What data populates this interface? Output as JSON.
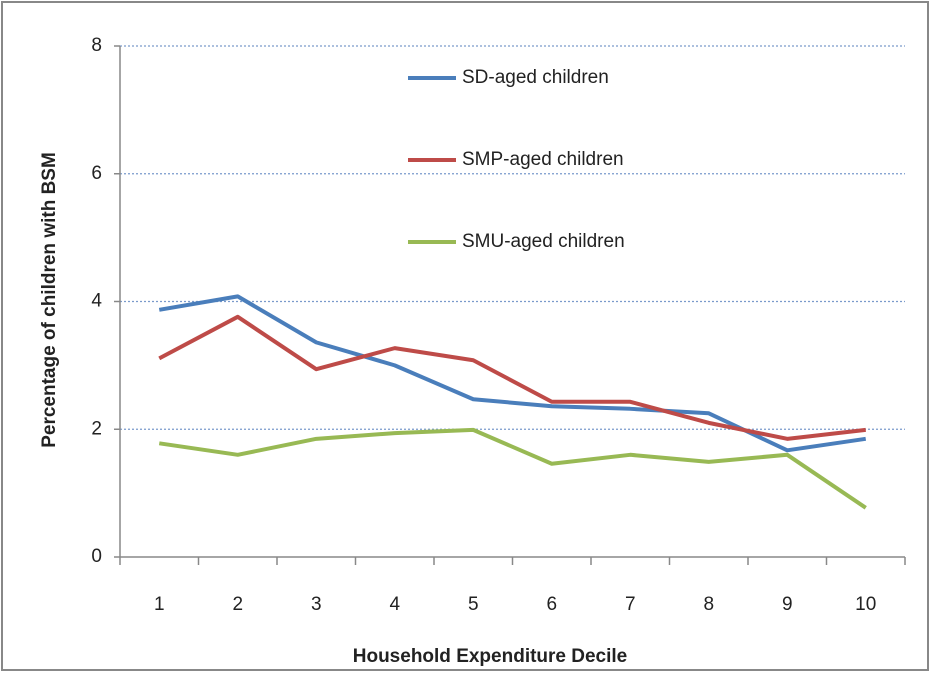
{
  "chart_data": {
    "type": "line",
    "x_label": "Household Expenditure Decile",
    "y_label": "Percentage of children with BSM",
    "categories": [
      "1",
      "2",
      "3",
      "4",
      "5",
      "6",
      "7",
      "8",
      "9",
      "10"
    ],
    "series": [
      {
        "name": "SD-aged children",
        "color": "#4a7ebb",
        "values": [
          3.87,
          4.08,
          3.36,
          3.0,
          2.47,
          2.36,
          2.32,
          2.25,
          1.67,
          1.85
        ]
      },
      {
        "name": "SMP-aged children",
        "color": "#be4b48",
        "values": [
          3.11,
          3.76,
          2.94,
          3.27,
          3.08,
          2.43,
          2.43,
          2.1,
          1.85,
          1.99
        ]
      },
      {
        "name": "SMU-aged children",
        "color": "#98b954",
        "values": [
          1.78,
          1.6,
          1.85,
          1.94,
          1.99,
          1.46,
          1.6,
          1.49,
          1.6,
          0.77
        ]
      }
    ],
    "ylim": [
      0,
      8
    ],
    "yticks": [
      0,
      2,
      4,
      6,
      8
    ],
    "grid": true
  }
}
